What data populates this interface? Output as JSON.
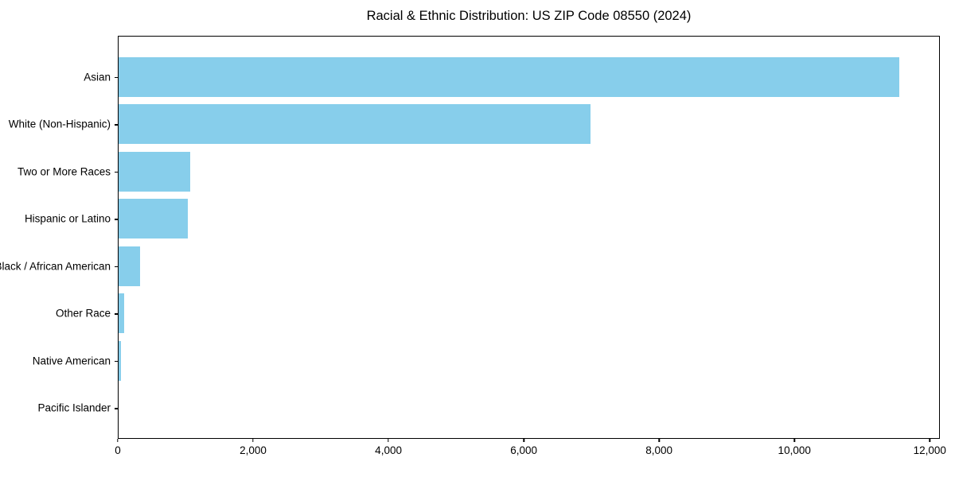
{
  "title": "Racial & Ethnic Distribution: US ZIP Code 08550 (2024)",
  "chart_data": {
    "type": "bar",
    "orientation": "horizontal",
    "title": "Racial & Ethnic Distribution: US ZIP Code 08550 (2024)",
    "xlabel": "",
    "ylabel": "",
    "categories": [
      "Asian",
      "White (Non-Hispanic)",
      "Two or More Races",
      "Hispanic or Latino",
      "Black / African American",
      "Other Race",
      "Native American",
      "Pacific Islander"
    ],
    "values": [
      11560,
      6990,
      1060,
      1030,
      315,
      85,
      30,
      0
    ],
    "xlim": [
      0,
      12150
    ],
    "xticks": [
      0,
      2000,
      4000,
      6000,
      8000,
      10000,
      12000
    ],
    "xtick_labels": [
      "0",
      "2,000",
      "4,000",
      "6,000",
      "8,000",
      "10,000",
      "12,000"
    ],
    "bar_color": "#87CEEB",
    "background_color": "#FFFFFF",
    "grid": false,
    "legend": null
  }
}
